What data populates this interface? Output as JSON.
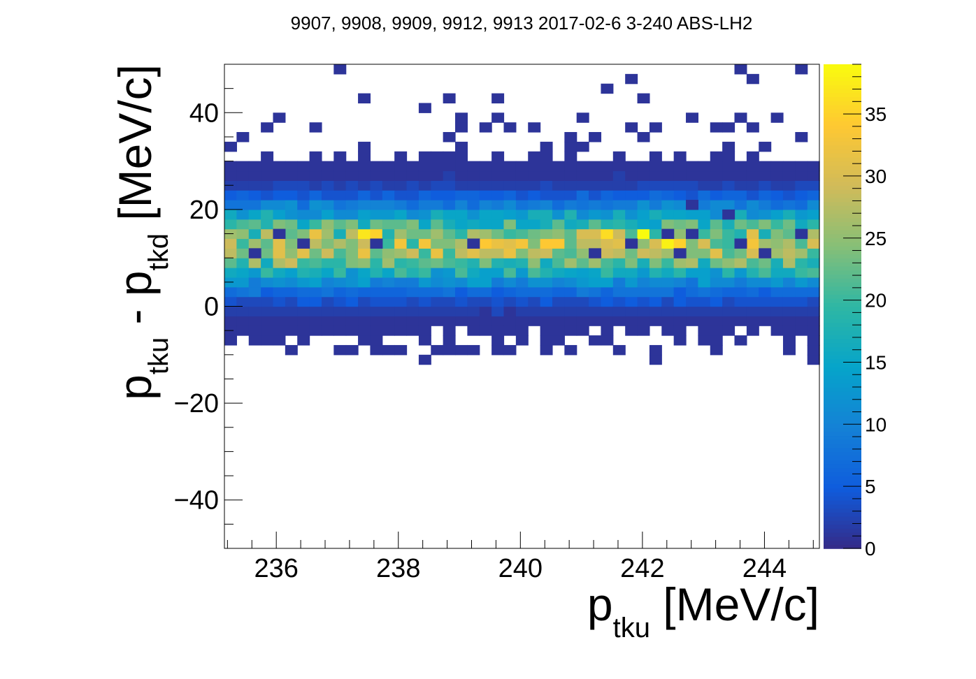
{
  "chart_data": {
    "type": "heatmap",
    "title": "9907, 9908, 9909, 9912, 9913 2017-02-6 3-240 ABS-LH2",
    "xlabel": {
      "base": "p",
      "sub": "tku",
      "suffix": " [MeV/c]"
    },
    "ylabel": {
      "base": "p",
      "sub": "tku",
      "mid": " - p",
      "sub2": "tkd",
      "suffix": " [MeV/c]"
    },
    "xlim": [
      235.15,
      244.9
    ],
    "ylim": [
      -50,
      50
    ],
    "xbins": 49,
    "ybins": 50,
    "bin_width_x": 0.199,
    "bin_width_y": 2,
    "x_ticks": [
      236,
      238,
      240,
      242,
      244
    ],
    "x_tick_labels": [
      "236",
      "238",
      "240",
      "242",
      "244"
    ],
    "y_ticks": [
      -40,
      -20,
      0,
      20,
      40
    ],
    "y_tick_labels": [
      "−40",
      "−20",
      "0",
      "20",
      "40"
    ],
    "z_range": [
      0,
      39
    ],
    "z_ticks": [
      0,
      5,
      10,
      15,
      20,
      25,
      30,
      35
    ],
    "z_tick_labels": [
      "0",
      "5",
      "10",
      "15",
      "20",
      "25",
      "30",
      "35"
    ],
    "colormap": [
      "#352a87",
      "#0f5cdd",
      "#1481d6",
      "#06a4ca",
      "#2eb7a4",
      "#87bf77",
      "#d1bb59",
      "#fec832",
      "#f9fb0e"
    ],
    "band_profile": [
      [
        -16,
        0.01
      ],
      [
        -14,
        0.02
      ],
      [
        -12,
        0.05
      ],
      [
        -10,
        0.15
      ],
      [
        -8,
        0.3
      ],
      [
        -6,
        0.45
      ],
      [
        -4,
        0.7
      ],
      [
        -2,
        1.5
      ],
      [
        0,
        2.5
      ],
      [
        2,
        5
      ],
      [
        4,
        9
      ],
      [
        6,
        14
      ],
      [
        8,
        19
      ],
      [
        10,
        24
      ],
      [
        12,
        27
      ],
      [
        14,
        26
      ],
      [
        16,
        22
      ],
      [
        18,
        17
      ],
      [
        20,
        12
      ],
      [
        22,
        7
      ],
      [
        24,
        3.5
      ],
      [
        26,
        1.5
      ],
      [
        28,
        0.9
      ],
      [
        30,
        0.5
      ],
      [
        32,
        0.25
      ],
      [
        34,
        0.15
      ],
      [
        36,
        0.1
      ],
      [
        38,
        0.08
      ],
      [
        40,
        0.06
      ],
      [
        42,
        0.04
      ],
      [
        44,
        0.03
      ],
      [
        46,
        0.02
      ],
      [
        48,
        0.02
      ]
    ],
    "sparse_cells": [
      [
        237.0,
        49
      ],
      [
        243.6,
        49
      ],
      [
        244.6,
        49
      ],
      [
        243.9,
        47
      ],
      [
        241.5,
        45
      ],
      [
        237.4,
        43
      ],
      [
        239.6,
        43
      ],
      [
        242.9,
        39
      ],
      [
        243.7,
        39
      ],
      [
        236.6,
        37
      ],
      [
        239.1,
        37
      ],
      [
        239.5,
        37
      ],
      [
        241.8,
        37
      ],
      [
        242.2,
        37
      ],
      [
        243.5,
        37
      ],
      [
        242.8,
        21
      ],
      [
        243.5,
        19
      ],
      [
        236.0,
        15
      ],
      [
        242.4,
        15
      ],
      [
        242.8,
        15
      ],
      [
        244.6,
        15
      ],
      [
        236.4,
        13
      ],
      [
        237.7,
        13
      ],
      [
        239.3,
        13
      ],
      [
        241.8,
        13
      ],
      [
        243.7,
        13
      ],
      [
        235.6,
        11
      ],
      [
        241.2,
        11
      ],
      [
        242.6,
        11
      ],
      [
        244.0,
        11
      ]
    ],
    "grid": false,
    "legend": "none"
  }
}
